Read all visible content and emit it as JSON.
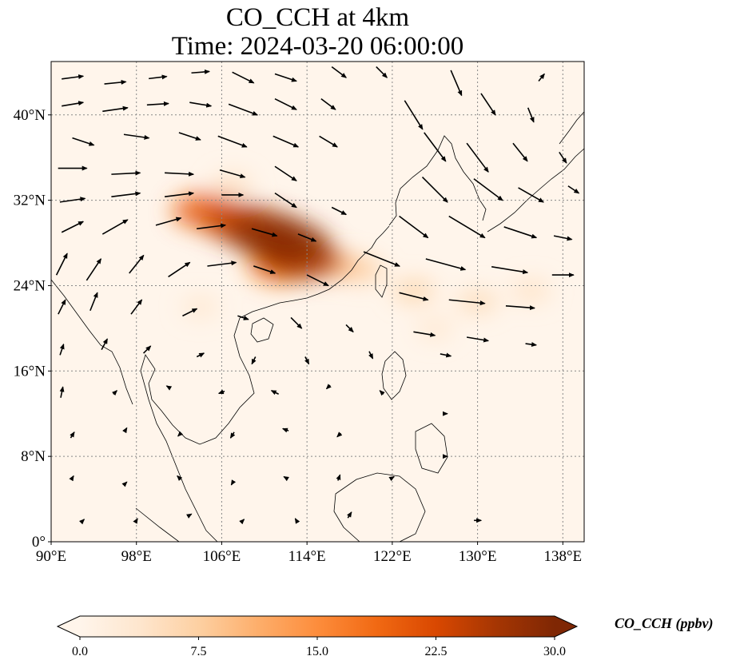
{
  "title": {
    "line1": "CO_CCH at 4km",
    "line2": "Time: 2024-03-20 06:00:00"
  },
  "map": {
    "lon_range": [
      90,
      140
    ],
    "lat_range": [
      0,
      45
    ],
    "lon_ticks": [
      {
        "value": 90,
        "label": "90°E"
      },
      {
        "value": 98,
        "label": "98°E"
      },
      {
        "value": 106,
        "label": "106°E"
      },
      {
        "value": 114,
        "label": "114°E"
      },
      {
        "value": 122,
        "label": "122°E"
      },
      {
        "value": 130,
        "label": "130°E"
      },
      {
        "value": 138,
        "label": "138°E"
      }
    ],
    "lat_ticks": [
      {
        "value": 0,
        "label": "0°"
      },
      {
        "value": 8,
        "label": "8°N"
      },
      {
        "value": 16,
        "label": "16°N"
      },
      {
        "value": 24,
        "label": "24°N"
      },
      {
        "value": 32,
        "label": "32°N"
      },
      {
        "value": 40,
        "label": "40°N"
      }
    ],
    "gridlines": "dotted",
    "background_color": "#fff5eb"
  },
  "colorbar": {
    "label": "CO_CCH (ppbv)",
    "min": 0.0,
    "max": 30.0,
    "ticks": [
      "0.0",
      "7.5",
      "15.0",
      "22.5",
      "30.0"
    ],
    "colormap": "OrRd",
    "extend": "both",
    "stops": [
      "#fff5eb",
      "#fee6ce",
      "#fdd0a2",
      "#fdae6b",
      "#fd8d3c",
      "#f16913",
      "#d94801",
      "#a63603",
      "#7f2704"
    ]
  },
  "co_plume": [
    {
      "lon": 104.5,
      "lat": 31.0,
      "value": 20
    },
    {
      "lon": 107.5,
      "lat": 30.0,
      "value": 24
    },
    {
      "lon": 110.0,
      "lat": 29.0,
      "value": 28
    },
    {
      "lon": 112.0,
      "lat": 28.0,
      "value": 29
    },
    {
      "lon": 113.5,
      "lat": 26.5,
      "value": 26
    },
    {
      "lon": 111.5,
      "lat": 25.8,
      "value": 18
    },
    {
      "lon": 116.0,
      "lat": 26.0,
      "value": 12
    },
    {
      "lon": 119.0,
      "lat": 25.5,
      "value": 8
    },
    {
      "lon": 124.0,
      "lat": 23.5,
      "value": 7
    },
    {
      "lon": 130.0,
      "lat": 22.5,
      "value": 6
    },
    {
      "lon": 135.0,
      "lat": 23.5,
      "value": 5
    },
    {
      "lon": 107.0,
      "lat": 33.5,
      "value": 5
    },
    {
      "lon": 104.0,
      "lat": 22.0,
      "value": 4
    },
    {
      "lon": 126.0,
      "lat": 20.0,
      "value": 4
    }
  ],
  "wind": [
    {
      "lon": 92,
      "lat": 43.5,
      "u": 3,
      "v": 0.4
    },
    {
      "lon": 96,
      "lat": 43,
      "u": 3,
      "v": 0.3
    },
    {
      "lon": 100,
      "lat": 43.5,
      "u": 2.5,
      "v": 0.3
    },
    {
      "lon": 104,
      "lat": 44,
      "u": 2.5,
      "v": 0.2
    },
    {
      "lon": 108,
      "lat": 43.5,
      "u": 3,
      "v": -1.5
    },
    {
      "lon": 112,
      "lat": 43.5,
      "u": 3,
      "v": -1
    },
    {
      "lon": 117,
      "lat": 44,
      "u": 2,
      "v": -1.5
    },
    {
      "lon": 121,
      "lat": 44,
      "u": 1.5,
      "v": -1.5
    },
    {
      "lon": 128,
      "lat": 43,
      "u": 1.5,
      "v": -3.5
    },
    {
      "lon": 136,
      "lat": 43.5,
      "u": 0.8,
      "v": 1
    },
    {
      "lon": 92,
      "lat": 41,
      "u": 3,
      "v": 0.5
    },
    {
      "lon": 96,
      "lat": 40.5,
      "u": 3.5,
      "v": 0.5
    },
    {
      "lon": 100,
      "lat": 41,
      "u": 3,
      "v": 0.2
    },
    {
      "lon": 104,
      "lat": 41,
      "u": 3,
      "v": -0.5
    },
    {
      "lon": 108,
      "lat": 40.5,
      "u": 4,
      "v": -1.5
    },
    {
      "lon": 112,
      "lat": 41,
      "u": 3,
      "v": -1.5
    },
    {
      "lon": 116,
      "lat": 41,
      "u": 2,
      "v": -1.5
    },
    {
      "lon": 124,
      "lat": 40,
      "u": 2.5,
      "v": -4
    },
    {
      "lon": 131,
      "lat": 41,
      "u": 2,
      "v": -3
    },
    {
      "lon": 135,
      "lat": 40,
      "u": 0.8,
      "v": -2
    },
    {
      "lon": 93,
      "lat": 37.5,
      "u": 3,
      "v": -1
    },
    {
      "lon": 98,
      "lat": 38,
      "u": 3.5,
      "v": -0.5
    },
    {
      "lon": 103,
      "lat": 38,
      "u": 3,
      "v": -1
    },
    {
      "lon": 107,
      "lat": 37.5,
      "u": 4,
      "v": -1.5
    },
    {
      "lon": 112,
      "lat": 37.5,
      "u": 3.5,
      "v": -1.5
    },
    {
      "lon": 116,
      "lat": 37.5,
      "u": 2.5,
      "v": -1.5
    },
    {
      "lon": 126,
      "lat": 37,
      "u": 3,
      "v": -4
    },
    {
      "lon": 130,
      "lat": 36,
      "u": 3,
      "v": -4
    },
    {
      "lon": 134,
      "lat": 36.5,
      "u": 2,
      "v": -2.5
    },
    {
      "lon": 138,
      "lat": 36,
      "u": 1,
      "v": -1.5
    },
    {
      "lon": 92,
      "lat": 35,
      "u": 4,
      "v": 0
    },
    {
      "lon": 97,
      "lat": 34.5,
      "u": 4,
      "v": 0.2
    },
    {
      "lon": 102,
      "lat": 34.5,
      "u": 4,
      "v": -0.2
    },
    {
      "lon": 107,
      "lat": 34.5,
      "u": 3.5,
      "v": -1
    },
    {
      "lon": 112,
      "lat": 34.5,
      "u": 3,
      "v": -2
    },
    {
      "lon": 126,
      "lat": 33,
      "u": 3.5,
      "v": -3.5
    },
    {
      "lon": 131,
      "lat": 33,
      "u": 4,
      "v": -3
    },
    {
      "lon": 135,
      "lat": 32.5,
      "u": 3.5,
      "v": -2
    },
    {
      "lon": 139,
      "lat": 33,
      "u": 1.5,
      "v": -1
    },
    {
      "lon": 92,
      "lat": 32,
      "u": 3.5,
      "v": 0.5
    },
    {
      "lon": 97,
      "lat": 32.5,
      "u": 4,
      "v": 0.5
    },
    {
      "lon": 102,
      "lat": 32.5,
      "u": 4,
      "v": 0.5
    },
    {
      "lon": 107,
      "lat": 32.5,
      "u": 3,
      "v": 0
    },
    {
      "lon": 112,
      "lat": 32,
      "u": 3,
      "v": -2
    },
    {
      "lon": 117,
      "lat": 31,
      "u": 2,
      "v": -1
    },
    {
      "lon": 124,
      "lat": 29.5,
      "u": 4,
      "v": -3
    },
    {
      "lon": 129,
      "lat": 29.5,
      "u": 5,
      "v": -3
    },
    {
      "lon": 134,
      "lat": 29,
      "u": 4.5,
      "v": -1.5
    },
    {
      "lon": 138,
      "lat": 28.5,
      "u": 2.5,
      "v": -0.5
    },
    {
      "lon": 92,
      "lat": 29.5,
      "u": 3,
      "v": 1.5
    },
    {
      "lon": 96,
      "lat": 29.5,
      "u": 3.5,
      "v": 2
    },
    {
      "lon": 101,
      "lat": 30,
      "u": 3.5,
      "v": 1
    },
    {
      "lon": 105,
      "lat": 29.5,
      "u": 4,
      "v": 0.5
    },
    {
      "lon": 110,
      "lat": 29,
      "u": 3.5,
      "v": -1
    },
    {
      "lon": 114,
      "lat": 28.5,
      "u": 2.5,
      "v": -1
    },
    {
      "lon": 121,
      "lat": 26.5,
      "u": 5,
      "v": -2
    },
    {
      "lon": 127,
      "lat": 26,
      "u": 5.5,
      "v": -1.5
    },
    {
      "lon": 133,
      "lat": 25.5,
      "u": 5,
      "v": -0.8
    },
    {
      "lon": 138,
      "lat": 25,
      "u": 3,
      "v": 0
    },
    {
      "lon": 91,
      "lat": 26,
      "u": 1.5,
      "v": 3
    },
    {
      "lon": 94,
      "lat": 25.5,
      "u": 2,
      "v": 3
    },
    {
      "lon": 98,
      "lat": 26,
      "u": 2,
      "v": 2.5
    },
    {
      "lon": 102,
      "lat": 25.5,
      "u": 3,
      "v": 2
    },
    {
      "lon": 106,
      "lat": 26,
      "u": 4,
      "v": 0.5
    },
    {
      "lon": 110,
      "lat": 25.5,
      "u": 3,
      "v": -1
    },
    {
      "lon": 115,
      "lat": 24.5,
      "u": 3,
      "v": -1.5
    },
    {
      "lon": 124,
      "lat": 23,
      "u": 4,
      "v": -1
    },
    {
      "lon": 129,
      "lat": 22.5,
      "u": 5,
      "v": -0.5
    },
    {
      "lon": 134,
      "lat": 22,
      "u": 4,
      "v": -0.3
    },
    {
      "lon": 91,
      "lat": 22,
      "u": 1,
      "v": 2
    },
    {
      "lon": 94,
      "lat": 22.5,
      "u": 1,
      "v": 2.5
    },
    {
      "lon": 98,
      "lat": 22,
      "u": 1.5,
      "v": 2
    },
    {
      "lon": 103,
      "lat": 21.5,
      "u": 2,
      "v": 1
    },
    {
      "lon": 108,
      "lat": 21,
      "u": 1.5,
      "v": -0.5
    },
    {
      "lon": 113,
      "lat": 20.5,
      "u": 1.5,
      "v": -1.5
    },
    {
      "lon": 118,
      "lat": 20,
      "u": 1,
      "v": -1
    },
    {
      "lon": 125,
      "lat": 19.5,
      "u": 3,
      "v": -0.5
    },
    {
      "lon": 130,
      "lat": 19,
      "u": 3,
      "v": -0.5
    },
    {
      "lon": 135,
      "lat": 18.5,
      "u": 1.5,
      "v": -0.2
    },
    {
      "lon": 91,
      "lat": 18,
      "u": 0.5,
      "v": 1.5
    },
    {
      "lon": 95,
      "lat": 18.5,
      "u": 0.8,
      "v": 1.5
    },
    {
      "lon": 99,
      "lat": 18,
      "u": 1,
      "v": 1
    },
    {
      "lon": 104,
      "lat": 17.5,
      "u": 1,
      "v": 0.5
    },
    {
      "lon": 109,
      "lat": 17,
      "u": -0.5,
      "v": -1
    },
    {
      "lon": 114,
      "lat": 17,
      "u": 0.5,
      "v": -1
    },
    {
      "lon": 120,
      "lat": 17.5,
      "u": 0.5,
      "v": -1
    },
    {
      "lon": 127,
      "lat": 17.5,
      "u": 1.5,
      "v": -0.3
    },
    {
      "lon": 91,
      "lat": 14,
      "u": 0.3,
      "v": 1.5
    },
    {
      "lon": 96,
      "lat": 14,
      "u": 0.5,
      "v": 0.5
    },
    {
      "lon": 101,
      "lat": 14.5,
      "u": -0.5,
      "v": 0.3
    },
    {
      "lon": 106,
      "lat": 14,
      "u": -0.8,
      "v": -0.3
    },
    {
      "lon": 111,
      "lat": 14,
      "u": -1,
      "v": 0.5
    },
    {
      "lon": 116,
      "lat": 14.5,
      "u": -0.5,
      "v": -0.5
    },
    {
      "lon": 121,
      "lat": 14,
      "u": -0.5,
      "v": 0.5
    },
    {
      "lon": 127,
      "lat": 12,
      "u": 0.5,
      "v": 0
    },
    {
      "lon": 92,
      "lat": 10,
      "u": 0.5,
      "v": 0.8
    },
    {
      "lon": 97,
      "lat": 10.5,
      "u": 0.3,
      "v": 0.5
    },
    {
      "lon": 102,
      "lat": 10,
      "u": -0.3,
      "v": -0.3
    },
    {
      "lon": 107,
      "lat": 10,
      "u": -0.5,
      "v": -0.8
    },
    {
      "lon": 112,
      "lat": 10.5,
      "u": -0.8,
      "v": 0.3
    },
    {
      "lon": 117,
      "lat": 10,
      "u": -0.5,
      "v": -0.5
    },
    {
      "lon": 127,
      "lat": 8,
      "u": 0.5,
      "v": 0
    },
    {
      "lon": 92,
      "lat": 6,
      "u": 0.3,
      "v": 0.5
    },
    {
      "lon": 97,
      "lat": 5.5,
      "u": 0.3,
      "v": 0.3
    },
    {
      "lon": 102,
      "lat": 6,
      "u": -0.5,
      "v": 0.5
    },
    {
      "lon": 107,
      "lat": 5.5,
      "u": -0.3,
      "v": -0.5
    },
    {
      "lon": 112,
      "lat": 6,
      "u": -0.5,
      "v": 0.3
    },
    {
      "lon": 117,
      "lat": 6,
      "u": 0.3,
      "v": 0.8
    },
    {
      "lon": 122,
      "lat": 6,
      "u": 0.5,
      "v": 0.3
    },
    {
      "lon": 93,
      "lat": 2,
      "u": 0.3,
      "v": 0.3
    },
    {
      "lon": 98,
      "lat": 2,
      "u": 0.3,
      "v": 0.5
    },
    {
      "lon": 103,
      "lat": 2.5,
      "u": 0.5,
      "v": 0.3
    },
    {
      "lon": 108,
      "lat": 2,
      "u": 0.3,
      "v": 0.3
    },
    {
      "lon": 113,
      "lat": 2,
      "u": -0.3,
      "v": 0.5
    },
    {
      "lon": 118,
      "lat": 2.5,
      "u": 0.5,
      "v": 0.8
    },
    {
      "lon": 130,
      "lat": 2,
      "u": 1,
      "v": 0
    }
  ]
}
